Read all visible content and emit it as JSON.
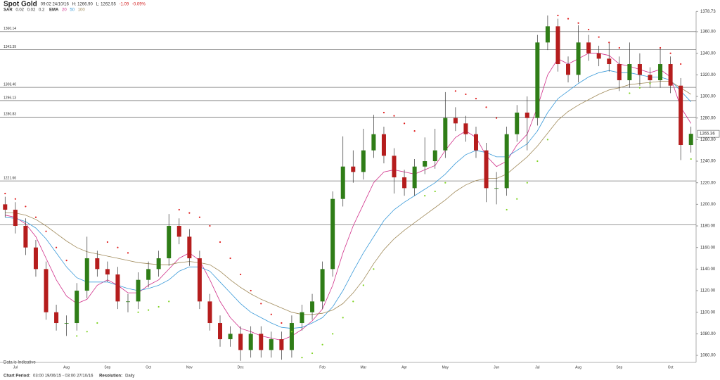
{
  "chart_data": {
    "type": "candlestick",
    "title": "Spot Gold",
    "info": [
      "09:02 24/10/16",
      "H: 1266.90",
      "L: 1262.55"
    ],
    "change": "-1.09",
    "change_pct": "-0.09%",
    "change_color": "#d21c1c",
    "categories": [
      null,
      "Jul",
      null,
      null,
      null,
      null,
      "Aug",
      null,
      null,
      null,
      "Sep",
      null,
      null,
      null,
      "Oct",
      null,
      null,
      null,
      "Nov",
      null,
      null,
      null,
      null,
      "Dec",
      null,
      null,
      null,
      null,
      null,
      null,
      null,
      "Feb",
      null,
      null,
      null,
      "Mar",
      null,
      null,
      null,
      "Apr",
      null,
      null,
      null,
      "May",
      null,
      null,
      null,
      null,
      "Jun",
      null,
      null,
      null,
      "Jul",
      null,
      null,
      null,
      "Aug",
      null,
      null,
      null,
      "Sep",
      null,
      null,
      null,
      null,
      "Oct",
      null,
      null
    ],
    "open": [
      1200,
      1195,
      1180,
      1160,
      1140,
      1100,
      1090,
      1090,
      1120,
      1150,
      1140,
      1135,
      1110,
      1110,
      1130,
      1140,
      1150,
      1180,
      1170,
      1150,
      1110,
      1090,
      1075,
      1080,
      1065,
      1080,
      1065,
      1075,
      1065,
      1090,
      1100,
      1110,
      1140,
      1205,
      1235,
      1230,
      1250,
      1265,
      1245,
      1225,
      1215,
      1235,
      1240,
      1250,
      1280,
      1275,
      1265,
      1250,
      1215,
      1215,
      1265,
      1285,
      1280,
      1350,
      1365,
      1330,
      1320,
      1350,
      1340,
      1335,
      1330,
      1315,
      1330,
      1320,
      1315,
      1330,
      1310,
      1255
    ],
    "high": [
      1207,
      1202,
      1187,
      1167,
      1147,
      1107,
      1097,
      1127,
      1170,
      1157,
      1147,
      1142,
      1117,
      1137,
      1147,
      1157,
      1191,
      1187,
      1177,
      1157,
      1117,
      1097,
      1087,
      1087,
      1087,
      1087,
      1082,
      1082,
      1097,
      1107,
      1117,
      1147,
      1212,
      1263,
      1250,
      1270,
      1283,
      1272,
      1252,
      1232,
      1242,
      1262,
      1270,
      1304,
      1290,
      1282,
      1272,
      1257,
      1230,
      1272,
      1292,
      1300,
      1357,
      1375,
      1372,
      1337,
      1366,
      1357,
      1347,
      1350,
      1337,
      1350,
      1340,
      1327,
      1345,
      1337,
      1317,
      1272
    ],
    "low": [
      1188,
      1173,
      1153,
      1133,
      1093,
      1083,
      1078,
      1083,
      1113,
      1133,
      1128,
      1103,
      1100,
      1103,
      1123,
      1133,
      1143,
      1163,
      1143,
      1103,
      1083,
      1068,
      1068,
      1055,
      1058,
      1058,
      1058,
      1056,
      1058,
      1083,
      1093,
      1103,
      1133,
      1198,
      1220,
      1223,
      1243,
      1238,
      1210,
      1208,
      1208,
      1228,
      1233,
      1243,
      1268,
      1258,
      1243,
      1202,
      1200,
      1208,
      1258,
      1250,
      1273,
      1343,
      1323,
      1313,
      1313,
      1333,
      1328,
      1323,
      1305,
      1308,
      1310,
      1308,
      1308,
      1303,
      1241,
      1248
    ],
    "close": [
      1195,
      1180,
      1160,
      1140,
      1100,
      1090,
      1090,
      1120,
      1150,
      1140,
      1135,
      1110,
      1110,
      1130,
      1140,
      1150,
      1180,
      1170,
      1150,
      1110,
      1090,
      1075,
      1080,
      1065,
      1080,
      1065,
      1075,
      1065,
      1090,
      1100,
      1110,
      1140,
      1205,
      1235,
      1230,
      1250,
      1265,
      1245,
      1225,
      1215,
      1235,
      1240,
      1250,
      1280,
      1275,
      1265,
      1250,
      1215,
      1215,
      1265,
      1285,
      1280,
      1350,
      1365,
      1330,
      1320,
      1350,
      1340,
      1335,
      1330,
      1315,
      1330,
      1320,
      1315,
      1330,
      1310,
      1255,
      1265.36
    ],
    "up_color": "#2f7d17",
    "down_color": "#b51d1d",
    "sar": {
      "name": "SAR",
      "params": [
        "0.02",
        "0.02",
        "0.2"
      ],
      "above_color": "#e02020",
      "below_color": "#7ed321",
      "values": [
        1210,
        1205,
        1198,
        1188,
        1175,
        1160,
        1148,
        1078,
        1082,
        1090,
        1165,
        1160,
        1155,
        1100,
        1102,
        1105,
        1110,
        1195,
        1192,
        1188,
        1180,
        1165,
        1150,
        1135,
        1120,
        1108,
        1098,
        1090,
        1082,
        1058,
        1062,
        1070,
        1080,
        1095,
        1110,
        1125,
        1140,
        1285,
        1282,
        1275,
        1268,
        1208,
        1212,
        1220,
        1305,
        1302,
        1298,
        1290,
        1280,
        1195,
        1205,
        1220,
        1240,
        1260,
        1375,
        1372,
        1368,
        1362,
        1355,
        1350,
        1345,
        1303,
        1308,
        1312,
        1345,
        1340,
        1330,
        1242
      ]
    },
    "ema": {
      "name": "EMA",
      "series": [
        {
          "name": "20",
          "color": "#d0308a",
          "values": [
            1190,
            1188,
            1182,
            1170,
            1150,
            1130,
            1115,
            1108,
            1112,
            1125,
            1130,
            1125,
            1118,
            1118,
            1125,
            1130,
            1140,
            1150,
            1155,
            1148,
            1130,
            1110,
            1095,
            1085,
            1082,
            1078,
            1076,
            1074,
            1078,
            1084,
            1092,
            1103,
            1125,
            1155,
            1180,
            1200,
            1220,
            1230,
            1232,
            1230,
            1228,
            1232,
            1236,
            1250,
            1262,
            1268,
            1262,
            1245,
            1235,
            1240,
            1255,
            1265,
            1290,
            1320,
            1335,
            1330,
            1335,
            1340,
            1340,
            1338,
            1330,
            1328,
            1325,
            1322,
            1325,
            1318,
            1290,
            1275
          ]
        },
        {
          "name": "50",
          "color": "#3a9ad9",
          "values": [
            1188,
            1187,
            1184,
            1178,
            1168,
            1155,
            1142,
            1132,
            1128,
            1128,
            1128,
            1125,
            1122,
            1120,
            1122,
            1125,
            1130,
            1138,
            1142,
            1142,
            1138,
            1128,
            1118,
            1108,
            1100,
            1095,
            1090,
            1086,
            1085,
            1086,
            1090,
            1095,
            1105,
            1120,
            1138,
            1155,
            1170,
            1185,
            1195,
            1202,
            1208,
            1214,
            1220,
            1228,
            1238,
            1246,
            1250,
            1248,
            1244,
            1244,
            1250,
            1256,
            1268,
            1285,
            1298,
            1305,
            1312,
            1318,
            1322,
            1324,
            1322,
            1322,
            1320,
            1318,
            1318,
            1315,
            1305,
            1295
          ]
        },
        {
          "name": "100",
          "color": "#a08a5a",
          "values": [
            1192,
            1192,
            1190,
            1186,
            1180,
            1173,
            1166,
            1160,
            1156,
            1154,
            1152,
            1150,
            1148,
            1146,
            1145,
            1144,
            1144,
            1146,
            1147,
            1146,
            1144,
            1138,
            1130,
            1123,
            1117,
            1112,
            1108,
            1104,
            1100,
            1098,
            1098,
            1099,
            1102,
            1108,
            1118,
            1130,
            1145,
            1158,
            1168,
            1176,
            1183,
            1190,
            1197,
            1204,
            1212,
            1218,
            1222,
            1224,
            1224,
            1228,
            1236,
            1244,
            1254,
            1266,
            1278,
            1286,
            1292,
            1297,
            1302,
            1306,
            1308,
            1311,
            1312,
            1313,
            1314,
            1314,
            1308,
            1302
          ]
        }
      ]
    },
    "levels": [
      {
        "value": 1360.14,
        "label": "1360.14"
      },
      {
        "value": 1343.39,
        "label": "1343.39"
      },
      {
        "value": 1308.4,
        "label": "1308.40"
      },
      {
        "value": 1296.13,
        "label": "1296.13"
      },
      {
        "value": 1280.83,
        "label": "1280.83"
      },
      {
        "value": 1221.66,
        "label": "1221.66"
      },
      {
        "value": 1181,
        "label": null
      }
    ],
    "last_price": 1265.36,
    "ylim": [
      1053.5,
      1378.73
    ],
    "yticks": [
      {
        "value": 1060,
        "label": "1060.00"
      },
      {
        "value": 1080,
        "label": "1080.00"
      },
      {
        "value": 1100,
        "label": "1100.00"
      },
      {
        "value": 1120,
        "label": "1120.00"
      },
      {
        "value": 1140,
        "label": "1140.00"
      },
      {
        "value": 1160,
        "label": "1160.00"
      },
      {
        "value": 1180,
        "label": "1180.00"
      },
      {
        "value": 1200,
        "label": "1200.00"
      },
      {
        "value": 1220,
        "label": "1220.00"
      },
      {
        "value": 1240,
        "label": "1240.00"
      },
      {
        "value": 1260,
        "label": "1260.00"
      },
      {
        "value": 1280,
        "label": "1280.00"
      },
      {
        "value": 1300,
        "label": "1300.00"
      },
      {
        "value": 1320,
        "label": "1320.00"
      },
      {
        "value": 1340,
        "label": "1340.00"
      },
      {
        "value": 1360,
        "label": "1360.00"
      },
      1378.73
    ],
    "note": "Data is Indicative",
    "footer": [
      {
        "label": "Chart Period:",
        "text": "03:00 19/06/15 - 03:00 27/10/16"
      },
      {
        "label": "Resolution:",
        "text": "Daily"
      }
    ]
  }
}
